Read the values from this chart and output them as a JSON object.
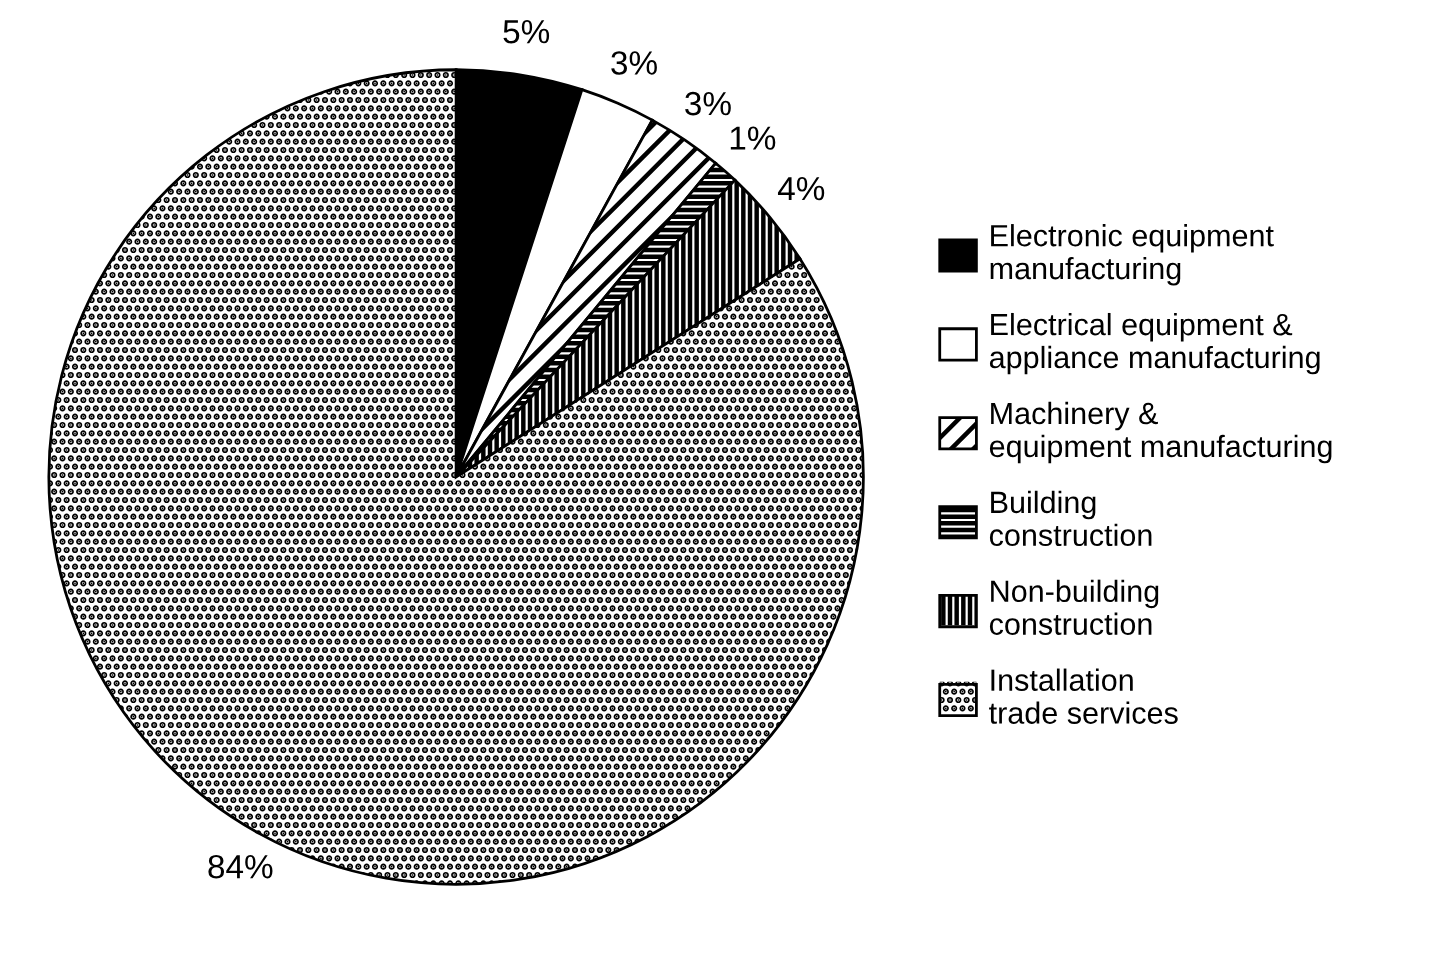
{
  "chart_data": {
    "type": "pie",
    "categories": [
      "Electronic equipment\nmanufacturing",
      "Electrical equipment &\nappliance manufacturing",
      "Machinery &\nequipment manufacturing",
      "Building\nconstruction",
      "Non-building\nconstruction",
      "Installation\ntrade services"
    ],
    "values": [
      5,
      3,
      3,
      1,
      4,
      84
    ],
    "colors": [
      "#000000",
      "#ffffff",
      "#ffffff",
      "#ffffff",
      "#ffffff",
      "#ffffff"
    ],
    "value_labels": [
      "5%",
      "3%",
      "3%",
      "1%",
      "4%",
      "84%"
    ],
    "legend": "right"
  }
}
